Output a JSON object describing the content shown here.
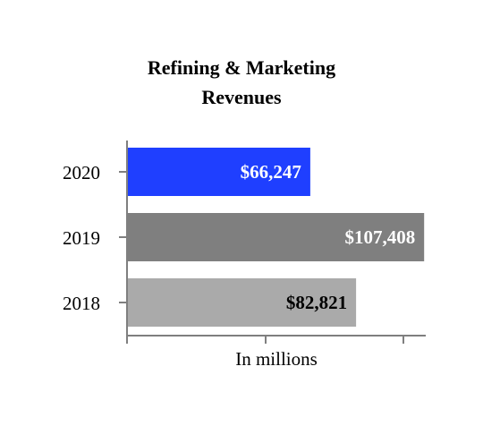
{
  "chart_data": {
    "type": "bar",
    "orientation": "horizontal",
    "title_lines": [
      "Refining & Marketing",
      "Revenues"
    ],
    "xlabel": "In millions",
    "ylabel": "",
    "xlim": [
      0,
      108000
    ],
    "grid": false,
    "categories": [
      "2020",
      "2019",
      "2018"
    ],
    "values": [
      66247,
      107408,
      82821
    ],
    "data_labels": [
      "$66,247",
      "$107,408",
      "$82,821"
    ],
    "bar_colors": [
      "#1f3fff",
      "#7f7f7f",
      "#aaaaaa"
    ],
    "label_colors": [
      "#ffffff",
      "#ffffff",
      "#000000"
    ]
  }
}
